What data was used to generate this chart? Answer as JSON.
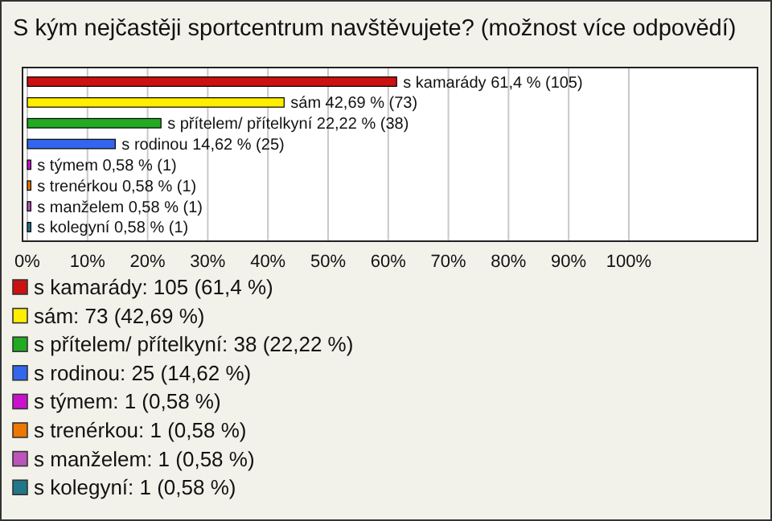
{
  "chart_data": {
    "type": "bar",
    "orientation": "horizontal",
    "stacked": true,
    "title": "S kým nejčastěji sportcentrum navštěvujete? (možnost více odpovědí)",
    "categories": [
      null,
      null,
      null,
      null,
      null,
      null,
      null,
      null
    ],
    "series": [
      {
        "name": "s kamarády: 105 (61,4 %)",
        "color": "#cc1111",
        "values": [
          61.4,
          null,
          null,
          null,
          null,
          null,
          null,
          null
        ],
        "value_labels": [
          "s kamarády 61,4 % (105)",
          null,
          null,
          null,
          null,
          null,
          null,
          null
        ]
      },
      {
        "name": "sám: 73 (42,69 %)",
        "color": "#ffee00",
        "values": [
          null,
          42.69,
          null,
          null,
          null,
          null,
          null,
          null
        ],
        "value_labels": [
          null,
          "sám 42,69 % (73)",
          null,
          null,
          null,
          null,
          null,
          null
        ]
      },
      {
        "name": "s přítelem/ přítelkyní: 38 (22,22 %)",
        "color": "#22aa22",
        "values": [
          null,
          null,
          22.22,
          null,
          null,
          null,
          null,
          null
        ],
        "value_labels": [
          null,
          null,
          "s přítelem/ přítelkyní 22,22 % (38)",
          null,
          null,
          null,
          null,
          null
        ]
      },
      {
        "name": "s rodinou: 25 (14,62 %)",
        "color": "#3366ee",
        "values": [
          null,
          null,
          null,
          14.62,
          null,
          null,
          null,
          null
        ],
        "value_labels": [
          null,
          null,
          null,
          "s rodinou 14,62 % (25)",
          null,
          null,
          null,
          null
        ]
      },
      {
        "name": "s týmem: 1 (0,58 %)",
        "color": "#cc11cc",
        "values": [
          null,
          null,
          null,
          null,
          0.58,
          null,
          null,
          null
        ],
        "value_labels": [
          null,
          null,
          null,
          null,
          "s týmem 0,58 % (1)",
          null,
          null,
          null
        ]
      },
      {
        "name": "s trenérkou: 1 (0,58 %)",
        "color": "#ee7700",
        "values": [
          null,
          null,
          null,
          null,
          null,
          0.58,
          null,
          null
        ],
        "value_labels": [
          null,
          null,
          null,
          null,
          null,
          "s trenérkou 0,58 % (1)",
          null,
          null
        ]
      },
      {
        "name": "s manželem: 1 (0,58 %)",
        "color": "#bb55bb",
        "values": [
          null,
          null,
          null,
          null,
          null,
          null,
          0.58,
          null
        ],
        "value_labels": [
          null,
          null,
          null,
          null,
          null,
          null,
          "s manželem 0,58 % (1)",
          null
        ]
      },
      {
        "name": "s kolegyní: 1 (0,58 %)",
        "color": "#227788",
        "values": [
          null,
          null,
          null,
          null,
          null,
          null,
          null,
          0.58
        ],
        "value_labels": [
          null,
          null,
          null,
          null,
          null,
          null,
          null,
          "s kolegyní 0,58 % (1)"
        ]
      }
    ],
    "xlim": [
      0,
      121.4
    ],
    "xticks": [
      {
        "value": 0,
        "label": "0%"
      },
      {
        "value": 10,
        "label": "10%"
      },
      {
        "value": 20,
        "label": "20%"
      },
      {
        "value": 30,
        "label": "30%"
      },
      {
        "value": 40,
        "label": "40%"
      },
      {
        "value": 50,
        "label": "50%"
      },
      {
        "value": 60,
        "label": "60%"
      },
      {
        "value": 70,
        "label": "70%"
      },
      {
        "value": 80,
        "label": "80%"
      },
      {
        "value": 90,
        "label": "90%"
      },
      {
        "value": 100,
        "label": "100%"
      }
    ],
    "grid": "x",
    "legend": "bottom",
    "tick_labels": "x"
  }
}
